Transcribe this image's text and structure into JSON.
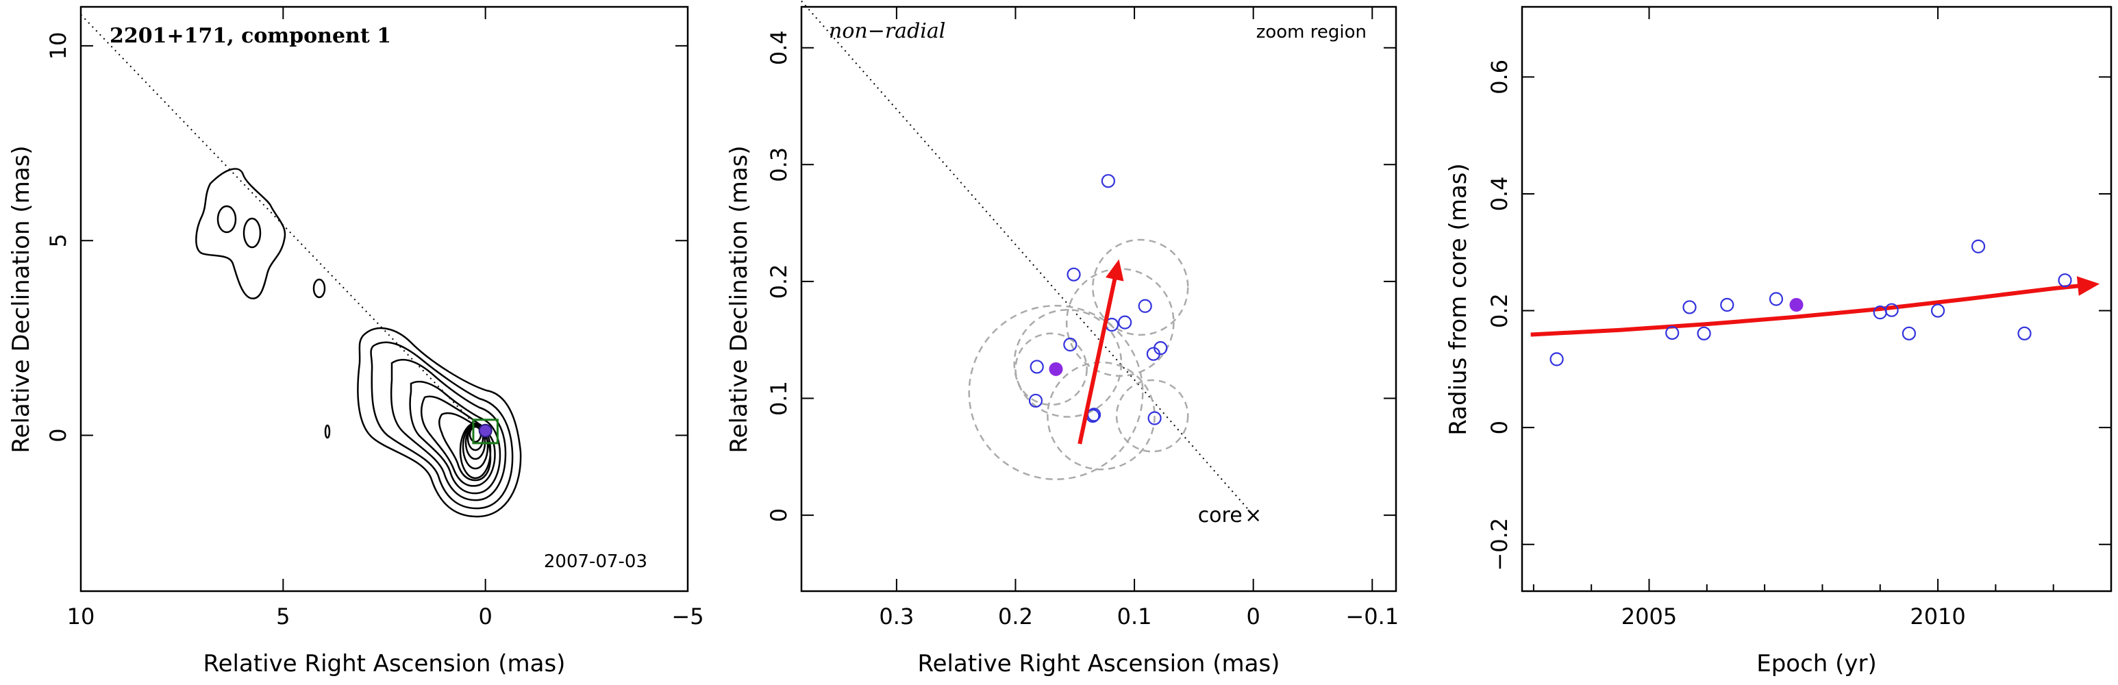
{
  "chart_data": [
    {
      "type": "contour",
      "title": "2201+171, component 1",
      "epoch_label": "2007-07-03",
      "xlabel": "Relative Right Ascension (mas)",
      "ylabel": "Relative Declination (mas)",
      "xlim": [
        10,
        -5
      ],
      "ylim": [
        -4,
        11
      ],
      "xticks": [
        10,
        5,
        0,
        -5
      ],
      "yticks": [
        0,
        5,
        10
      ],
      "direction_line": {
        "from": [
          10,
          10.8
        ],
        "to": [
          0,
          0
        ]
      },
      "component": {
        "x": 0,
        "y": 0.12
      },
      "zoom_box": {
        "x": [
          -0.3,
          0.3
        ],
        "y": [
          -0.2,
          0.4
        ]
      }
    },
    {
      "type": "scatter",
      "label_nonradial": "non−radial",
      "label_zoom": "zoom region",
      "core_label": "core",
      "xlabel": "Relative Right Ascension (mas)",
      "ylabel": "Relative Declination (mas)",
      "xlim": [
        0.38,
        -0.12
      ],
      "ylim": [
        -0.065,
        0.435
      ],
      "xticks": [
        0.3,
        0.2,
        0.1,
        0,
        -0.1
      ],
      "ytick_labels": [
        "0",
        "0.1",
        "0.2",
        "0.3",
        "0.4"
      ],
      "xtick_labels": [
        "0.3",
        "0.2",
        "0.1",
        "0",
        "−0.1"
      ],
      "core": {
        "x": 0,
        "y": 0
      },
      "direction_line": {
        "from": [
          0.38,
          0.44
        ],
        "to": [
          0,
          0
        ]
      },
      "points": [
        {
          "x": 0.122,
          "y": 0.286
        },
        {
          "x": 0.151,
          "y": 0.206
        },
        {
          "x": 0.091,
          "y": 0.179
        },
        {
          "x": 0.108,
          "y": 0.165
        },
        {
          "x": 0.119,
          "y": 0.163
        },
        {
          "x": 0.154,
          "y": 0.146
        },
        {
          "x": 0.078,
          "y": 0.143
        },
        {
          "x": 0.084,
          "y": 0.138
        },
        {
          "x": 0.182,
          "y": 0.127
        },
        {
          "x": 0.183,
          "y": 0.098
        },
        {
          "x": 0.135,
          "y": 0.085
        },
        {
          "x": 0.134,
          "y": 0.086
        },
        {
          "x": 0.083,
          "y": 0.083
        }
      ],
      "highlight": {
        "x": 0.166,
        "y": 0.125
      },
      "arrow": {
        "from": [
          0.146,
          0.061
        ],
        "to": [
          0.113,
          0.219
        ]
      },
      "circles": [
        {
          "x": 0.166,
          "y": 0.105,
          "r": 0.073
        },
        {
          "x": 0.156,
          "y": 0.13,
          "r": 0.045
        },
        {
          "x": 0.128,
          "y": 0.085,
          "r": 0.045
        },
        {
          "x": 0.112,
          "y": 0.165,
          "r": 0.045
        },
        {
          "x": 0.095,
          "y": 0.195,
          "r": 0.04
        },
        {
          "x": 0.085,
          "y": 0.085,
          "r": 0.03
        },
        {
          "x": 0.17,
          "y": 0.125,
          "r": 0.03
        }
      ]
    },
    {
      "type": "scatter",
      "xlabel": "Epoch (yr)",
      "ylabel": "Radius from core (mas)",
      "xlim": [
        2002.8,
        2013.0
      ],
      "ylim": [
        -0.28,
        0.72
      ],
      "xticks": [
        2005,
        2010
      ],
      "xtick_labels": [
        "2005",
        "2010"
      ],
      "yticks": [
        -0.2,
        0,
        0.2,
        0.4,
        0.6
      ],
      "ytick_labels": [
        "−0.2",
        "0",
        "0.2",
        "0.4",
        "0.6"
      ],
      "points": [
        {
          "x": 2003.4,
          "y": 0.117
        },
        {
          "x": 2005.4,
          "y": 0.162
        },
        {
          "x": 2005.7,
          "y": 0.206
        },
        {
          "x": 2005.95,
          "y": 0.161
        },
        {
          "x": 2006.35,
          "y": 0.21
        },
        {
          "x": 2007.2,
          "y": 0.22
        },
        {
          "x": 2009.0,
          "y": 0.197
        },
        {
          "x": 2009.2,
          "y": 0.201
        },
        {
          "x": 2009.5,
          "y": 0.161
        },
        {
          "x": 2010.0,
          "y": 0.2
        },
        {
          "x": 2010.7,
          "y": 0.31
        },
        {
          "x": 2011.5,
          "y": 0.161
        },
        {
          "x": 2012.2,
          "y": 0.252
        }
      ],
      "highlight": {
        "x": 2007.55,
        "y": 0.21
      },
      "fit": [
        {
          "x": 2002.95,
          "y": 0.159
        },
        {
          "x": 2004.5,
          "y": 0.167
        },
        {
          "x": 2006.0,
          "y": 0.177
        },
        {
          "x": 2007.5,
          "y": 0.189
        },
        {
          "x": 2009.0,
          "y": 0.203
        },
        {
          "x": 2010.5,
          "y": 0.22
        },
        {
          "x": 2012.0,
          "y": 0.238
        },
        {
          "x": 2012.8,
          "y": 0.246
        }
      ]
    }
  ]
}
